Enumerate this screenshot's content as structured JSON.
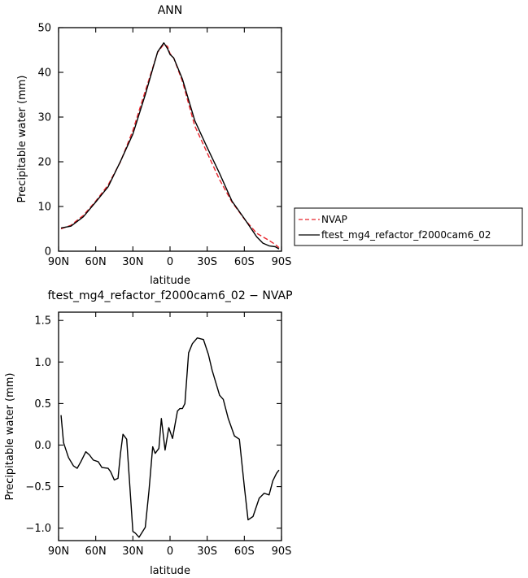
{
  "chart_data": [
    {
      "type": "line",
      "title": "ANN",
      "xlabel": "latitude",
      "ylabel": "Precipitable water (mm)",
      "xlim": [
        90,
        -90
      ],
      "ylim": [
        0,
        50
      ],
      "xticks": [
        90,
        60,
        30,
        0,
        -30,
        -60,
        -90
      ],
      "xtick_labels": [
        "90N",
        "60N",
        "30N",
        "0",
        "30S",
        "60S",
        "90S"
      ],
      "yticks": [
        0,
        10,
        20,
        30,
        40,
        50
      ],
      "ytick_labels": [
        "0",
        "10",
        "20",
        "30",
        "40",
        "50"
      ],
      "grid": false,
      "legend": "right",
      "series": [
        {
          "name": "NVAP",
          "color": "#e8242b",
          "dash": true,
          "x": [
            88,
            80,
            70,
            60,
            50,
            40,
            30,
            20,
            10,
            5,
            2,
            0,
            -3,
            -10,
            -20,
            -30,
            -40,
            -50,
            -60,
            -70,
            -75,
            -80,
            -85,
            -88
          ],
          "y": [
            5.0,
            5.8,
            8.0,
            11.2,
            14.8,
            20.0,
            27.0,
            35.8,
            44.5,
            46.3,
            45.8,
            44.2,
            43.2,
            38.0,
            28.0,
            22.0,
            16.0,
            11.0,
            7.2,
            4.0,
            3.2,
            2.4,
            1.5,
            0.8
          ]
        },
        {
          "name": "ftest_mg4_refactor_f2000cam6_02",
          "color": "#000000",
          "dash": false,
          "x": [
            88,
            80,
            70,
            60,
            50,
            40,
            30,
            20,
            10,
            5,
            2,
            0,
            -3,
            -10,
            -20,
            -30,
            -40,
            -50,
            -60,
            -70,
            -75,
            -80,
            -85,
            -88
          ],
          "y": [
            5.2,
            5.6,
            7.7,
            11.0,
            14.4,
            20.1,
            26.2,
            35.0,
            44.6,
            46.6,
            45.3,
            44.0,
            43.2,
            38.5,
            29.2,
            23.2,
            17.4,
            11.2,
            7.3,
            3.2,
            1.8,
            1.2,
            1.0,
            0.5
          ]
        }
      ]
    },
    {
      "type": "line",
      "title": "ftest_mg4_refactor_f2000cam6_02 − NVAP",
      "xlabel": "latitude",
      "ylabel": "Precipitable water (mm)",
      "xlim": [
        90,
        -90
      ],
      "ylim": [
        -1.15,
        1.6
      ],
      "xticks": [
        90,
        60,
        30,
        0,
        -30,
        -60,
        -90
      ],
      "xtick_labels": [
        "90N",
        "60N",
        "30N",
        "0",
        "30S",
        "60S",
        "90S"
      ],
      "yticks": [
        -1.0,
        -0.5,
        0.0,
        0.5,
        1.0,
        1.5
      ],
      "ytick_labels": [
        "−1.0",
        "−0.5",
        "0.0",
        "0.5",
        "1.0",
        "1.5"
      ],
      "grid": false,
      "series": [
        {
          "color": "#000000",
          "dash": false,
          "x": [
            88,
            86,
            82,
            78,
            75,
            72,
            68,
            65,
            62,
            58,
            55,
            50,
            48,
            45,
            42,
            40,
            38,
            35,
            30,
            28,
            25,
            20,
            17,
            14,
            12,
            9,
            7,
            4,
            1,
            -2,
            -6,
            -8,
            -10,
            -12,
            -15,
            -18,
            -22,
            -27,
            -31,
            -34,
            -37,
            -40,
            -43,
            -47,
            -52,
            -56,
            -60,
            -63,
            -67,
            -72,
            -76,
            -80,
            -83,
            -86,
            -88
          ],
          "y": [
            0.36,
            0.03,
            -0.15,
            -0.25,
            -0.28,
            -0.2,
            -0.08,
            -0.12,
            -0.18,
            -0.2,
            -0.27,
            -0.28,
            -0.32,
            -0.42,
            -0.4,
            -0.1,
            0.13,
            0.07,
            -1.04,
            -1.06,
            -1.11,
            -0.99,
            -0.55,
            -0.02,
            -0.1,
            -0.04,
            0.32,
            -0.06,
            0.21,
            0.08,
            0.41,
            0.44,
            0.44,
            0.5,
            1.11,
            1.22,
            1.29,
            1.27,
            1.09,
            0.9,
            0.75,
            0.6,
            0.55,
            0.32,
            0.11,
            0.07,
            -0.5,
            -0.9,
            -0.86,
            -0.64,
            -0.58,
            -0.6,
            -0.43,
            -0.34,
            -0.3
          ]
        }
      ]
    }
  ],
  "panels": {
    "top": {
      "title": "ANN",
      "ylabel": "Precipitable water (mm)",
      "xlabel": "latitude"
    },
    "bottom": {
      "title": "ftest_mg4_refactor_f2000cam6_02 − NVAP",
      "ylabel": "Precipitable water (mm)",
      "xlabel": "latitude"
    }
  },
  "legend": {
    "items": [
      {
        "label": "NVAP",
        "color": "#e8242b",
        "dash": true
      },
      {
        "label": "ftest_mg4_refactor_f2000cam6_02",
        "color": "#000000",
        "dash": false
      }
    ]
  }
}
